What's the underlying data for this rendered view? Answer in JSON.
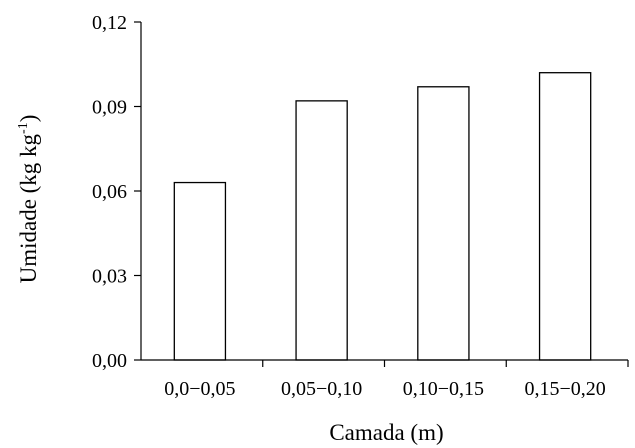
{
  "chart_data": {
    "type": "bar",
    "xlabel": "Camada (m)",
    "ylabel_main": "Umidade (kg kg",
    "ylabel_sup": "-1",
    "ylabel_end": ")",
    "categories": [
      "0,0−0,05",
      "0,05−0,10",
      "0,10−0,15",
      "0,15−0,20"
    ],
    "values": [
      0.063,
      0.092,
      0.097,
      0.102
    ],
    "ylim": [
      0,
      0.12
    ],
    "yticks": [
      "0,00",
      "0,03",
      "0,06",
      "0,09",
      "0,12"
    ],
    "ytick_values": [
      0,
      0.03,
      0.06,
      0.09,
      0.12
    ],
    "grid": false,
    "bar_fill": "#ffffff",
    "bar_stroke": "#000000"
  }
}
